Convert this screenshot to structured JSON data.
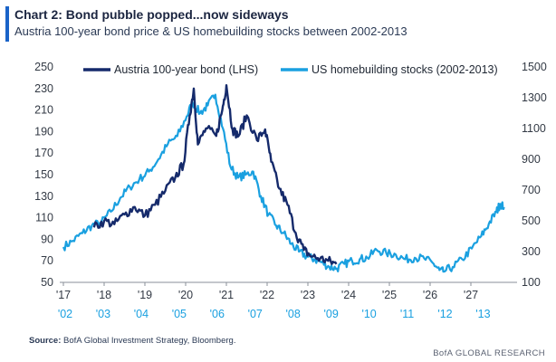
{
  "header": {
    "title": "Chart 2: Bond pubble popped...now sideways",
    "subtitle": "Austria 100-year bond price & US homebuilding stocks between 2002-2013"
  },
  "footer": {
    "source_label": "Source:",
    "source_text": "BofA Global Investment Strategy, Bloomberg.",
    "brand": "BofA GLOBAL RESEARCH"
  },
  "colors": {
    "accent": "#1a63c8",
    "series_primary": "#152a6b",
    "series_secondary": "#1aa0e0"
  },
  "chart_data": {
    "type": "line",
    "title": "Chart 2: Bond pubble popped...now sideways",
    "legend_position": "top",
    "grid": false,
    "x_primary": {
      "ticks": [
        "'17",
        "'18",
        "'19",
        "'20",
        "'21",
        "'22",
        "'23",
        "'24",
        "'25",
        "'26",
        "'27"
      ],
      "range": [
        2017,
        2028
      ]
    },
    "x_secondary": {
      "ticks": [
        "'02",
        "'03",
        "'04",
        "'05",
        "'06",
        "'07",
        "'08",
        "'09",
        "'10",
        "'11",
        "'12",
        "'13"
      ],
      "range": [
        2002,
        2013.8
      ]
    },
    "y_left": {
      "ticks": [
        50,
        70,
        90,
        110,
        130,
        150,
        170,
        190,
        210,
        230,
        250
      ],
      "range": [
        50,
        250
      ]
    },
    "y_right": {
      "ticks": [
        100,
        300,
        500,
        700,
        900,
        1100,
        1300,
        1500
      ],
      "range": [
        100,
        1500
      ]
    },
    "series": [
      {
        "name": "Austria 100-year bond (LHS)",
        "axis": "left",
        "x": [
          2017.75,
          2018.0,
          2018.25,
          2018.5,
          2018.75,
          2019.0,
          2019.25,
          2019.5,
          2019.75,
          2019.95,
          2020.1,
          2020.2,
          2020.3,
          2020.5,
          2020.75,
          2020.9,
          2021.0,
          2021.15,
          2021.3,
          2021.5,
          2021.75,
          2021.95,
          2022.1,
          2022.3,
          2022.5,
          2022.7,
          2022.9,
          2023.1,
          2023.3,
          2023.5,
          2023.7
        ],
        "values": [
          101,
          107,
          104,
          113,
          120,
          112,
          122,
          135,
          148,
          160,
          205,
          230,
          178,
          193,
          186,
          210,
          233,
          192,
          186,
          205,
          182,
          192,
          162,
          137,
          122,
          96,
          80,
          74,
          72,
          70,
          67
        ]
      },
      {
        "name": "US homebuilding stocks (2002-2013)",
        "axis": "right",
        "x": [
          2002.0,
          2002.25,
          2002.5,
          2002.75,
          2003.0,
          2003.25,
          2003.5,
          2003.75,
          2004.0,
          2004.25,
          2004.5,
          2004.75,
          2005.0,
          2005.25,
          2005.4,
          2005.6,
          2005.8,
          2006.0,
          2006.2,
          2006.4,
          2006.6,
          2006.8,
          2007.0,
          2007.2,
          2007.4,
          2007.6,
          2007.8,
          2008.0,
          2008.2,
          2008.4,
          2008.6,
          2008.8,
          2009.0,
          2009.2,
          2009.4,
          2009.6,
          2009.8,
          2010.0,
          2010.25,
          2010.5,
          2010.75,
          2011.0,
          2011.25,
          2011.5,
          2011.75,
          2011.9,
          2012.0,
          2012.25,
          2012.5,
          2012.75,
          2013.0,
          2013.2,
          2013.4,
          2013.5,
          2013.6
        ],
        "values": [
          330,
          370,
          420,
          470,
          490,
          560,
          650,
          720,
          770,
          820,
          900,
          1000,
          1050,
          1180,
          1270,
          1200,
          1250,
          1320,
          1100,
          850,
          780,
          800,
          820,
          660,
          540,
          470,
          420,
          350,
          300,
          270,
          250,
          230,
          200,
          190,
          220,
          240,
          250,
          260,
          310,
          290,
          280,
          250,
          260,
          255,
          220,
          180,
          170,
          200,
          250,
          320,
          400,
          480,
          560,
          610,
          590
        ]
      }
    ]
  }
}
